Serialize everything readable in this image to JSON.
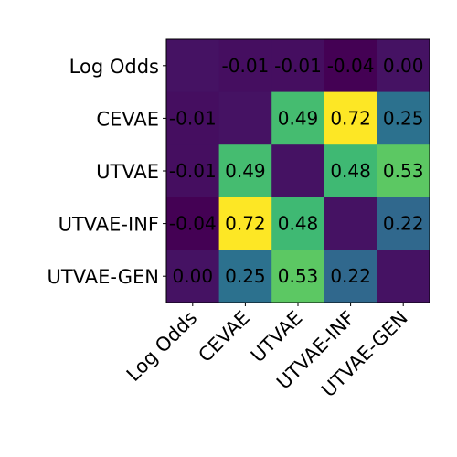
{
  "chart_data": {
    "type": "heatmap",
    "title": "",
    "xlabel": "",
    "ylabel": "",
    "colormap": "viridis",
    "color_range": [
      -0.04,
      0.72
    ],
    "x_labels": [
      "Log Odds",
      "CEVAE",
      "UTVAE",
      "UTVAE-INF",
      "UTVAE-GEN"
    ],
    "y_labels": [
      "Log Odds",
      "CEVAE",
      "UTVAE",
      "UTVAE-INF",
      "UTVAE-GEN"
    ],
    "values": [
      [
        0.0,
        -0.01,
        -0.01,
        -0.04,
        0.0
      ],
      [
        -0.01,
        0.0,
        0.49,
        0.72,
        0.25
      ],
      [
        -0.01,
        0.49,
        0.0,
        0.48,
        0.53
      ],
      [
        -0.04,
        0.72,
        0.48,
        0.0,
        0.22
      ],
      [
        0.0,
        0.25,
        0.53,
        0.22,
        0.0
      ]
    ],
    "cell_labels": [
      [
        "",
        "-0.01",
        "-0.01",
        "-0.04",
        "0.00"
      ],
      [
        "-0.01",
        "",
        "0.49",
        "0.72",
        "0.25"
      ],
      [
        "-0.01",
        "0.49",
        "",
        "0.48",
        "0.53"
      ],
      [
        "-0.04",
        "0.72",
        "0.48",
        "",
        "0.22"
      ],
      [
        "0.00",
        "0.25",
        "0.53",
        "0.22",
        ""
      ]
    ],
    "grid": false,
    "legend": "none"
  }
}
